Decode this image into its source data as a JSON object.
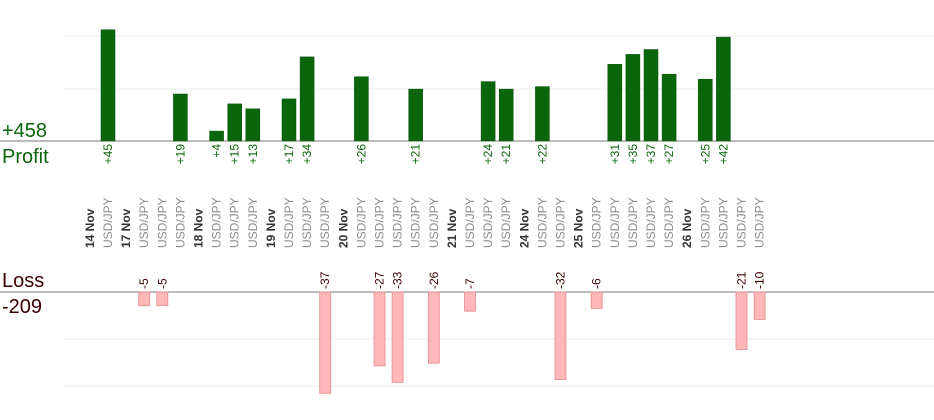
{
  "chart_data": {
    "type": "bar",
    "summary": {
      "profit_total": "+458",
      "profit_label": "Profit",
      "loss_label": "Loss",
      "loss_total": "-209"
    },
    "colors": {
      "profit": "#0a660a",
      "profit_text": "#0a660a",
      "loss": "#ffb7b7",
      "loss_text": "#3a0000",
      "date_text": "#333333",
      "pair_text": "#8c8c8c"
    },
    "profit_ylim": [
      0,
      57
    ],
    "loss_ylim": [
      0,
      42
    ],
    "dates": [
      "14 Nov",
      "17 Nov",
      "18 Nov",
      "19 Nov",
      "20 Nov",
      "21 Nov",
      "24 Nov",
      "25 Nov",
      "26 Nov"
    ],
    "trades": [
      {
        "date": "14 Nov",
        "pair": "USD/JPY",
        "value": 45,
        "label": "+45"
      },
      {
        "date": "17 Nov",
        "pair": "USD/JPY",
        "value": -5,
        "label": "-5"
      },
      {
        "date": "17 Nov",
        "pair": "USD/JPY",
        "value": -5,
        "label": "-5"
      },
      {
        "date": "17 Nov",
        "pair": "USD/JPY",
        "value": 19,
        "label": "+19"
      },
      {
        "date": "18 Nov",
        "pair": "USD/JPY",
        "value": 4,
        "label": "+4"
      },
      {
        "date": "18 Nov",
        "pair": "USD/JPY",
        "value": 15,
        "label": "+15"
      },
      {
        "date": "18 Nov",
        "pair": "USD/JPY",
        "value": 13,
        "label": "+13"
      },
      {
        "date": "19 Nov",
        "pair": "USD/JPY",
        "value": 17,
        "label": "+17"
      },
      {
        "date": "19 Nov",
        "pair": "USD/JPY",
        "value": 34,
        "label": "+34"
      },
      {
        "date": "19 Nov",
        "pair": "USD/JPY",
        "value": -37,
        "label": "-37"
      },
      {
        "date": "20 Nov",
        "pair": "USD/JPY",
        "value": 26,
        "label": "+26"
      },
      {
        "date": "20 Nov",
        "pair": "USD/JPY",
        "value": -27,
        "label": "-27"
      },
      {
        "date": "20 Nov",
        "pair": "USD/JPY",
        "value": -33,
        "label": "-33"
      },
      {
        "date": "20 Nov",
        "pair": "USD/JPY",
        "value": 21,
        "label": "+21"
      },
      {
        "date": "20 Nov",
        "pair": "USD/JPY",
        "value": -26,
        "label": "-26"
      },
      {
        "date": "21 Nov",
        "pair": "USD/JPY",
        "value": -7,
        "label": "-7"
      },
      {
        "date": "21 Nov",
        "pair": "USD/JPY",
        "value": 24,
        "label": "+24"
      },
      {
        "date": "21 Nov",
        "pair": "USD/JPY",
        "value": 21,
        "label": "+21"
      },
      {
        "date": "24 Nov",
        "pair": "USD/JPY",
        "value": 22,
        "label": "+22"
      },
      {
        "date": "24 Nov",
        "pair": "USD/JPY",
        "value": -32,
        "label": "-32"
      },
      {
        "date": "25 Nov",
        "pair": "USD/JPY",
        "value": -6,
        "label": "-6"
      },
      {
        "date": "25 Nov",
        "pair": "USD/JPY",
        "value": 31,
        "label": "+31"
      },
      {
        "date": "25 Nov",
        "pair": "USD/JPY",
        "value": 35,
        "label": "+35"
      },
      {
        "date": "25 Nov",
        "pair": "USD/JPY",
        "value": 37,
        "label": "+37"
      },
      {
        "date": "25 Nov",
        "pair": "USD/JPY",
        "value": 27,
        "label": "+27"
      },
      {
        "date": "26 Nov",
        "pair": "USD/JPY",
        "value": 25,
        "label": "+25"
      },
      {
        "date": "26 Nov",
        "pair": "USD/JPY",
        "value": 42,
        "label": "+42"
      },
      {
        "date": "26 Nov",
        "pair": "USD/JPY",
        "value": -21,
        "label": "-21"
      },
      {
        "date": "26 Nov",
        "pair": "USD/JPY",
        "value": -10,
        "label": "-10"
      }
    ]
  }
}
